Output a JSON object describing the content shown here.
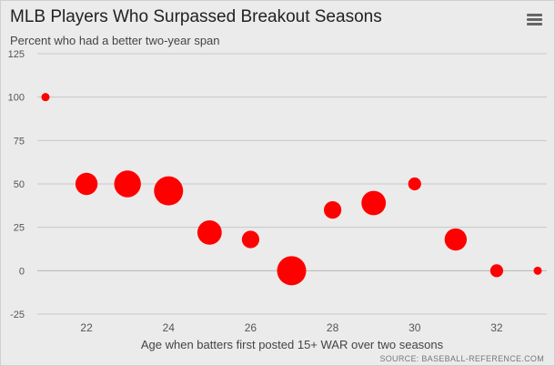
{
  "header": {
    "title": "MLB Players Who Surpassed Breakout Seasons",
    "subtitle": "Percent who had a better two-year span",
    "menu_icon": "hamburger-menu-icon"
  },
  "source": "SOURCE: BASEBALL-REFERENCE.COM",
  "colors": {
    "point": "#ff0000",
    "grid": "#c8c8c8",
    "background": "#ebebeb"
  },
  "chart_data": {
    "type": "scatter",
    "title": "MLB Players Who Surpassed Breakout Seasons",
    "subtitle": "Percent who had a better two-year span",
    "xlabel": "Age when batters first posted 15+ WAR over two seasons",
    "ylabel": "",
    "xlim": [
      21,
      33
    ],
    "ylim": [
      -25,
      125
    ],
    "xticks": [
      22,
      24,
      26,
      28,
      30,
      32
    ],
    "yticks": [
      -25,
      0,
      25,
      50,
      75,
      100,
      125
    ],
    "grid": true,
    "points": [
      {
        "x": 21,
        "y": 100,
        "size": 1
      },
      {
        "x": 22,
        "y": 50,
        "size": 7
      },
      {
        "x": 23,
        "y": 50,
        "size": 9
      },
      {
        "x": 24,
        "y": 46,
        "size": 10
      },
      {
        "x": 25,
        "y": 22,
        "size": 8
      },
      {
        "x": 26,
        "y": 18,
        "size": 5
      },
      {
        "x": 27,
        "y": 0,
        "size": 10
      },
      {
        "x": 28,
        "y": 35,
        "size": 5
      },
      {
        "x": 29,
        "y": 39,
        "size": 8
      },
      {
        "x": 30,
        "y": 50,
        "size": 3
      },
      {
        "x": 31,
        "y": 18,
        "size": 7
      },
      {
        "x": 32,
        "y": 0,
        "size": 3
      },
      {
        "x": 33,
        "y": 0,
        "size": 1
      }
    ]
  }
}
